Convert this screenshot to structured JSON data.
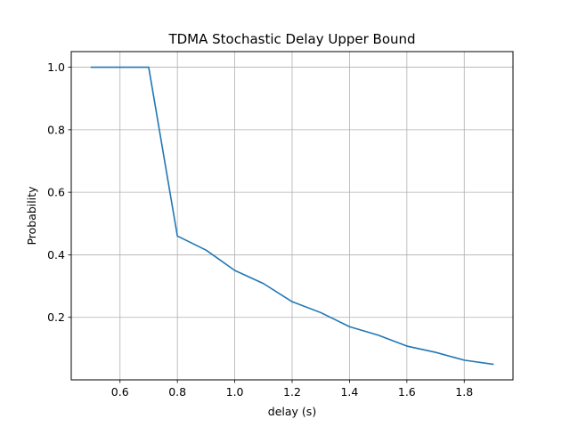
{
  "chart_data": {
    "type": "line",
    "title": "TDMA Stochastic Delay Upper Bound",
    "xlabel": "delay (s)",
    "ylabel": "Probability",
    "xlim": [
      0.43,
      1.97
    ],
    "ylim": [
      0.0,
      1.05
    ],
    "xticks": [
      0.6,
      0.8,
      1.0,
      1.2,
      1.4,
      1.6,
      1.8
    ],
    "xtick_labels": [
      "0.6",
      "0.8",
      "1.0",
      "1.2",
      "1.4",
      "1.6",
      "1.8"
    ],
    "yticks": [
      0.2,
      0.4,
      0.6,
      0.8,
      1.0
    ],
    "ytick_labels": [
      "0.2",
      "0.4",
      "0.6",
      "0.8",
      "1.0"
    ],
    "grid": true,
    "legend": null,
    "series": [
      {
        "color": "#1f77b4",
        "x": [
          0.5,
          0.6,
          0.7,
          0.8,
          0.9,
          1.0,
          1.1,
          1.2,
          1.3,
          1.4,
          1.5,
          1.6,
          1.7,
          1.8,
          1.9
        ],
        "y": [
          1.0,
          1.0,
          1.0,
          0.46,
          0.415,
          0.35,
          0.308,
          0.25,
          0.215,
          0.17,
          0.143,
          0.108,
          0.088,
          0.063,
          0.05
        ]
      }
    ]
  }
}
